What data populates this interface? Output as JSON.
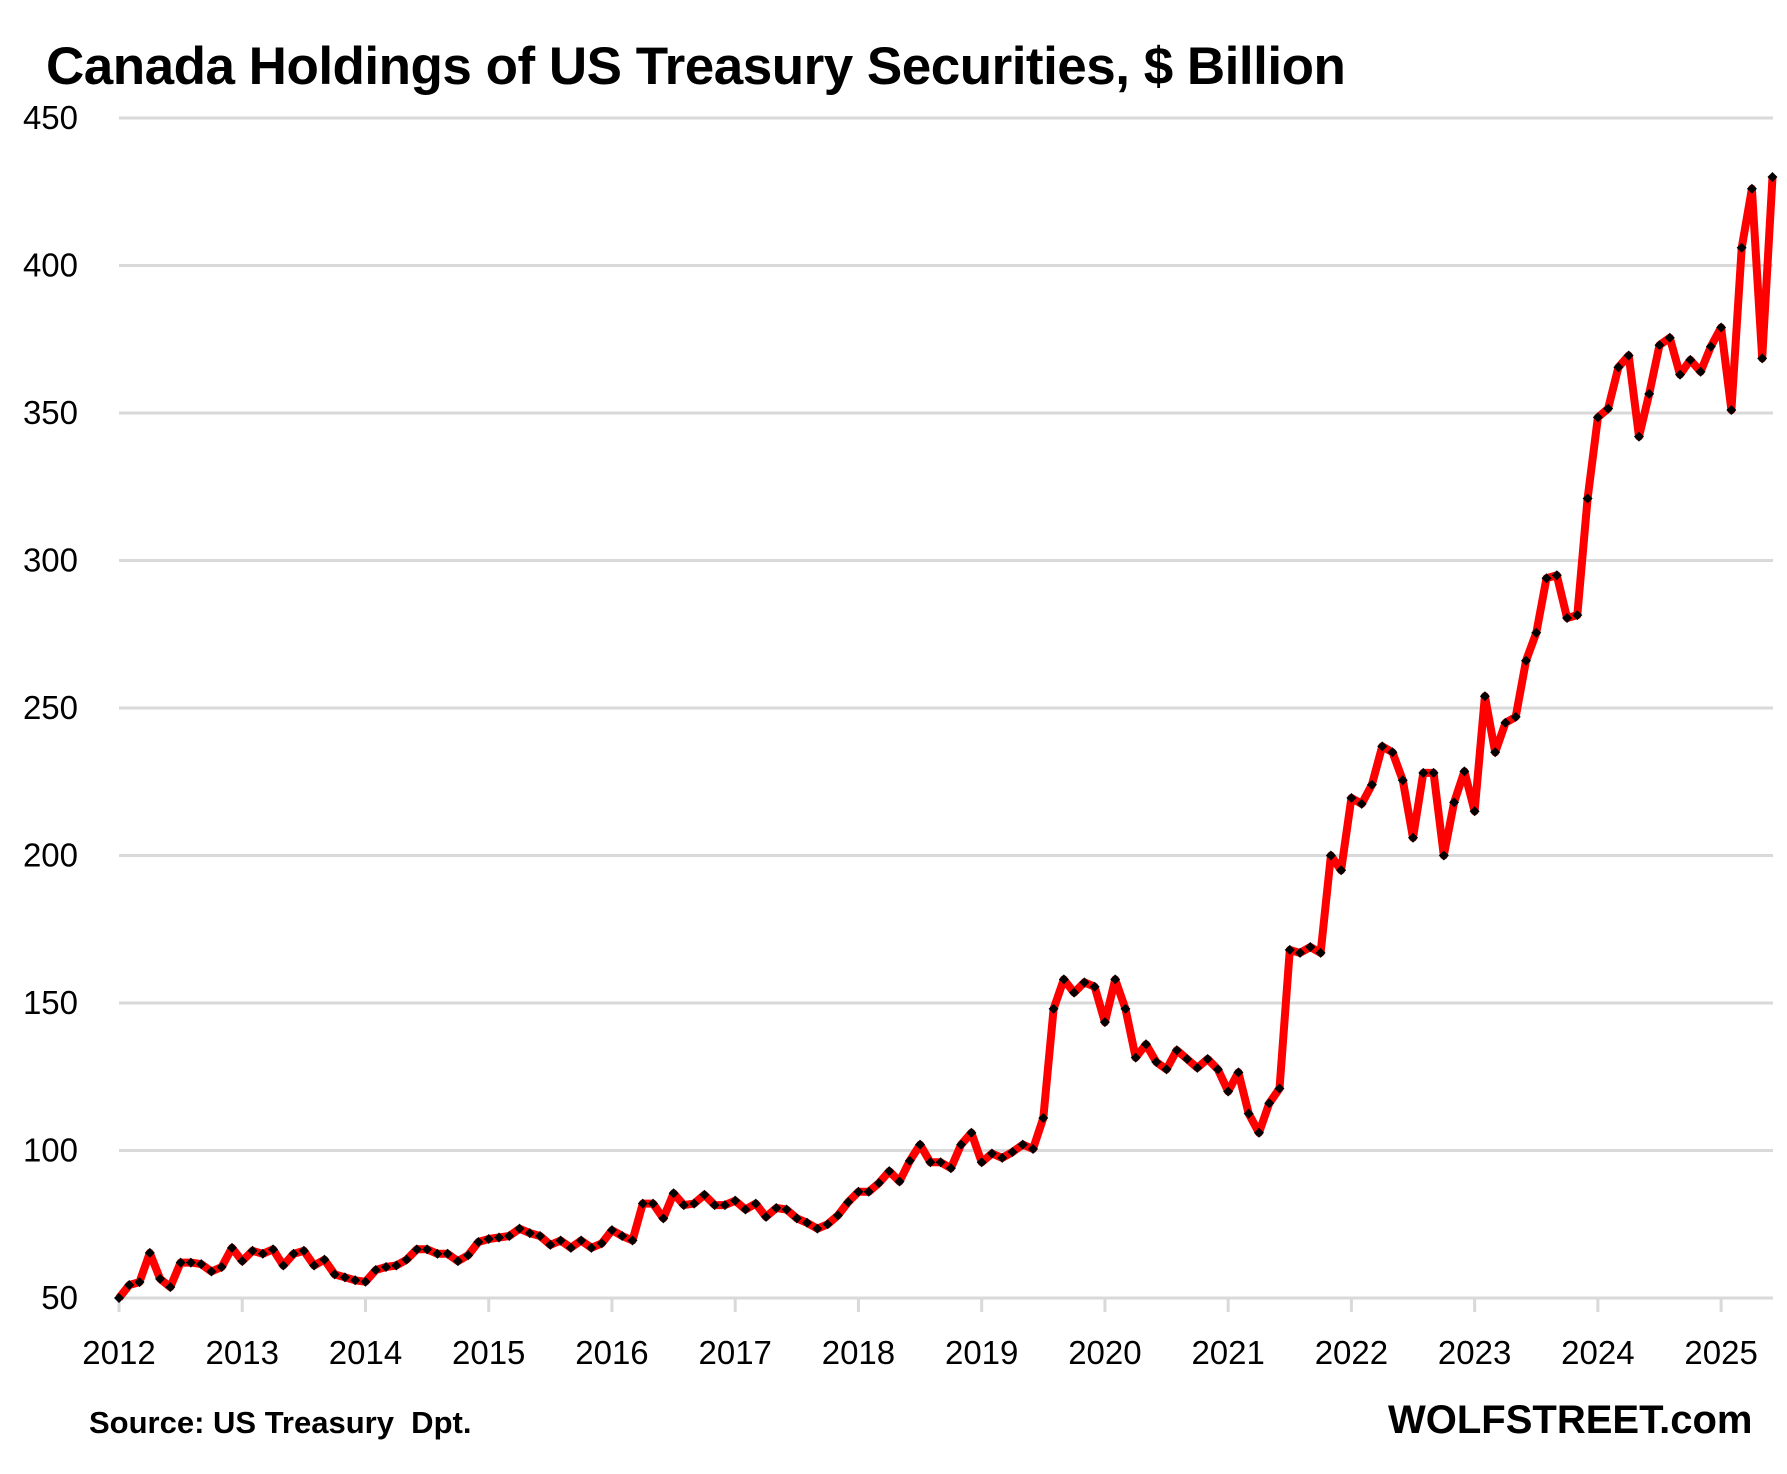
{
  "chart_data": {
    "type": "line",
    "title": "Canada Holdings of US Treasury Securities, $ Billion",
    "xlabel": "",
    "ylabel": "",
    "ylim": [
      50,
      450
    ],
    "yticks": [
      50,
      100,
      150,
      200,
      250,
      300,
      350,
      400,
      450
    ],
    "xlim": [
      "2012-01",
      "2025-06"
    ],
    "xticks": [
      "2012",
      "2013",
      "2014",
      "2015",
      "2016",
      "2017",
      "2018",
      "2019",
      "2020",
      "2021",
      "2022",
      "2023",
      "2024",
      "2025"
    ],
    "grid": "horizontal",
    "legend": "none",
    "series": [
      {
        "name": "Canada Holdings",
        "color": "#ff0000",
        "marker_color": "#000000",
        "start": "2012-01",
        "frequency": "monthly",
        "values": [
          50,
          54.4,
          55.4,
          65.3,
          56.5,
          53.7,
          62,
          62,
          61.5,
          59,
          60.5,
          67,
          62.5,
          66,
          65,
          66.5,
          61,
          65,
          66,
          61,
          63,
          58,
          57,
          56,
          55.5,
          59.5,
          60.5,
          61,
          63,
          66.5,
          66.5,
          65,
          65,
          62.5,
          64.5,
          69,
          70,
          70.5,
          71,
          73.5,
          72,
          71,
          68,
          69.5,
          67,
          69.5,
          67,
          68.5,
          73,
          71,
          69.5,
          82,
          82,
          77,
          85.5,
          81.5,
          82,
          85,
          81.5,
          81.5,
          83,
          80,
          82,
          77.5,
          80.5,
          80,
          77,
          75.5,
          73.5,
          75,
          78,
          82.5,
          86,
          86,
          89,
          93,
          89.5,
          96.5,
          102,
          96,
          96,
          94,
          102,
          106,
          96,
          99,
          97.5,
          99.5,
          102,
          100.5,
          111,
          148,
          158,
          153.5,
          157,
          155.5,
          143.5,
          158,
          148,
          131.5,
          136,
          130,
          127.5,
          134,
          131,
          128,
          131,
          127.5,
          120,
          126.5,
          112.5,
          106,
          116,
          121,
          168,
          167,
          169,
          167,
          200,
          195,
          219.5,
          217.5,
          224,
          237,
          235,
          225.5,
          206,
          228,
          228,
          200,
          218,
          228.5,
          215,
          254,
          235,
          245,
          247,
          266,
          275.5,
          294,
          295,
          280.5,
          281.5,
          321,
          348.5,
          351.5,
          365.5,
          369.5,
          342,
          356.5,
          373,
          375.5,
          363,
          368,
          364,
          372.5,
          379,
          351,
          406,
          426,
          368.5,
          430
        ]
      }
    ]
  },
  "header": {
    "title": "Canada Holdings of US Treasury Securities, $ Billion"
  },
  "footer": {
    "source": "Source: US Treasury  Dpt.",
    "brand": "WOLFSTREET.com"
  }
}
